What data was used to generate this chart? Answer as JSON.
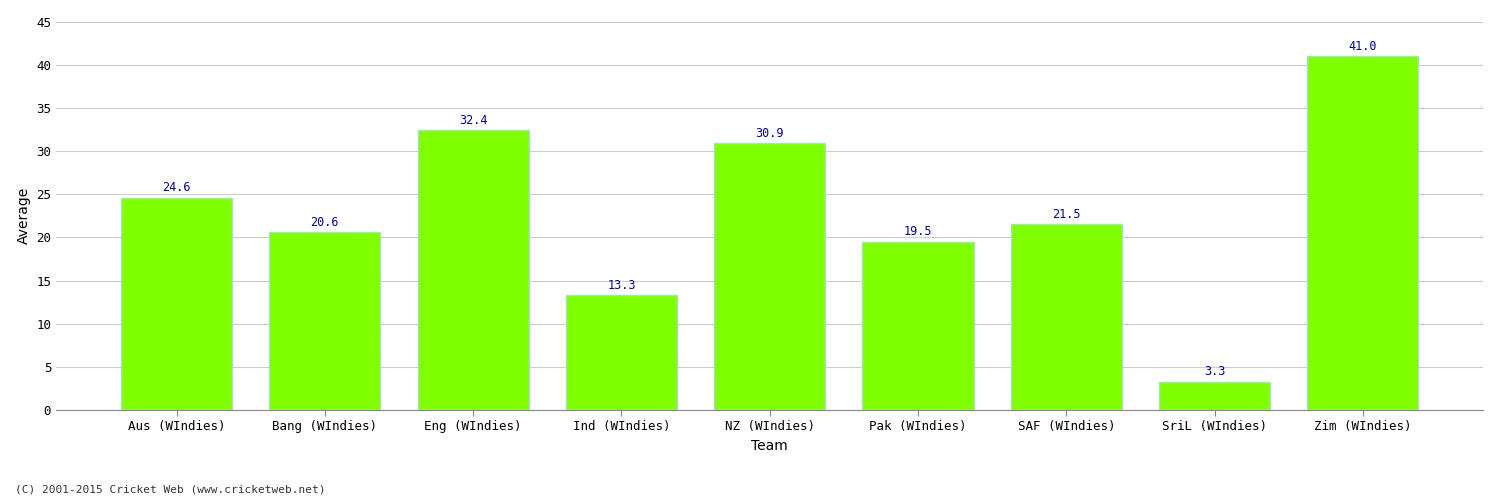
{
  "categories": [
    "Aus (WIndies)",
    "Bang (WIndies)",
    "Eng (WIndies)",
    "Ind (WIndies)",
    "NZ (WIndies)",
    "Pak (WIndies)",
    "SAF (WIndies)",
    "SriL (WIndies)",
    "Zim (WIndies)"
  ],
  "values": [
    24.6,
    20.6,
    32.4,
    13.3,
    30.9,
    19.5,
    21.5,
    3.3,
    41.0
  ],
  "bar_color": "#80FF00",
  "bar_edge_color": "#aaddcc",
  "value_color": "#000099",
  "xlabel": "Team",
  "ylabel": "Average",
  "ylim": [
    0,
    45
  ],
  "yticks": [
    0,
    5,
    10,
    15,
    20,
    25,
    30,
    35,
    40,
    45
  ],
  "grid_color": "#cccccc",
  "bg_color": "#ffffff",
  "font_size_labels": 9,
  "font_size_values": 8.5,
  "copyright": "(C) 2001-2015 Cricket Web (www.cricketweb.net)"
}
